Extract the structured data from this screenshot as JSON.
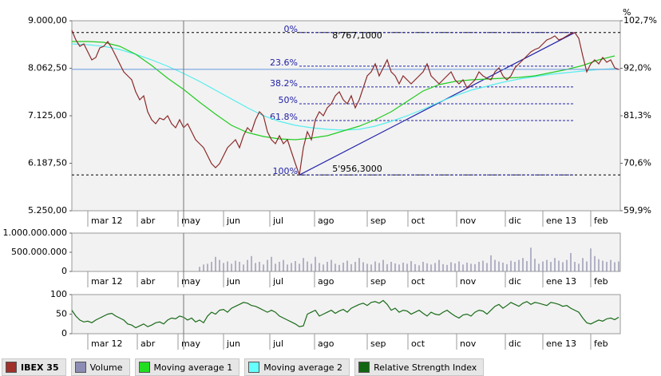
{
  "chart_data": [
    {
      "type": "line",
      "xlim": [
        0,
        137.4
      ],
      "xticks": [
        {
          "value": 4,
          "label": "mar 12"
        },
        {
          "value": 16.4,
          "label": "abr"
        },
        {
          "value": 26.6,
          "label": "may"
        },
        {
          "value": 38,
          "label": "jun"
        },
        {
          "value": 49.6,
          "label": "jul"
        },
        {
          "value": 60.8,
          "label": "ago"
        },
        {
          "value": 74,
          "label": "sep"
        },
        {
          "value": 84.2,
          "label": "oct"
        },
        {
          "value": 96.4,
          "label": "nov"
        },
        {
          "value": 108.6,
          "label": "dic"
        },
        {
          "value": 118,
          "label": "ene 13"
        },
        {
          "value": 130,
          "label": "feb"
        }
      ],
      "ylim": [
        5250,
        9000
      ],
      "yticks": [
        {
          "value": 5250,
          "label": "5.250,00"
        },
        {
          "value": 6187.5,
          "label": "6.187,50"
        },
        {
          "value": 7125,
          "label": "7.125,00"
        },
        {
          "value": 8062.5,
          "label": "8.062,50"
        },
        {
          "value": 9000,
          "label": "9.000,00"
        }
      ],
      "y2label": "%",
      "y2lim": [
        59.9,
        102.7
      ],
      "y2ticks": [
        {
          "value": 59.9,
          "label": "59,9%"
        },
        {
          "value": 70.6,
          "label": "70,6%"
        },
        {
          "value": 81.3,
          "label": "81,3%"
        },
        {
          "value": 92,
          "label": "92,0%"
        },
        {
          "value": 102.7,
          "label": "102,7%"
        }
      ],
      "series": [
        {
          "name": "IBEX 35",
          "color": "#8b2a2a",
          "values": [
            8811,
            8622,
            8496,
            8543,
            8386,
            8228,
            8275,
            8464,
            8496,
            8590,
            8464,
            8307,
            8149,
            7992,
            7913,
            7834,
            7598,
            7440,
            7519,
            7204,
            7046,
            6967,
            7078,
            7046,
            7125,
            6967,
            6889,
            7046,
            6889,
            6967,
            6810,
            6652,
            6574,
            6495,
            6337,
            6180,
            6101,
            6180,
            6337,
            6495,
            6574,
            6652,
            6495,
            6731,
            6889,
            6810,
            7046,
            7204,
            7125,
            6810,
            6652,
            6574,
            6731,
            6574,
            6652,
            6416,
            6180,
            5956.3,
            6495,
            6810,
            6652,
            7046,
            7204,
            7125,
            7283,
            7361,
            7519,
            7598,
            7440,
            7361,
            7519,
            7283,
            7440,
            7677,
            7913,
            7992,
            8149,
            7913,
            8070,
            8228,
            7992,
            7913,
            7755,
            7913,
            7834,
            7755,
            7834,
            7913,
            7992,
            8149,
            7913,
            7834,
            7755,
            7834,
            7913,
            7992,
            7834,
            7755,
            7834,
            7677,
            7755,
            7834,
            7992,
            7913,
            7866,
            7834,
            7992,
            8070,
            7913,
            7834,
            7913,
            8070,
            8149,
            8228,
            8307,
            8386,
            8433,
            8464,
            8543,
            8622,
            8653,
            8700,
            8622,
            8653,
            8700,
            8748,
            8767.1,
            8653,
            8307,
            7992,
            8149,
            8228,
            8149,
            8275,
            8181,
            8228,
            8070,
            8040
          ]
        },
        {
          "name": "Moving average 1",
          "color": "#22cc22",
          "x": [
            0,
            4,
            8,
            12,
            16,
            20,
            24,
            28,
            32,
            36,
            40,
            44,
            48,
            52,
            56,
            60,
            64,
            68,
            72,
            76,
            80,
            84,
            88,
            92,
            96,
            100,
            104,
            108,
            112,
            116,
            120,
            124,
            128,
            132,
            136
          ],
          "values": [
            8590,
            8590,
            8575,
            8496,
            8339,
            8117,
            7866,
            7645,
            7393,
            7157,
            6936,
            6794,
            6715,
            6668,
            6652,
            6684,
            6731,
            6826,
            6920,
            7046,
            7204,
            7409,
            7613,
            7739,
            7803,
            7834,
            7850,
            7866,
            7881,
            7913,
            7976,
            8039,
            8117,
            8228,
            8307
          ]
        },
        {
          "name": "Moving average 2",
          "color": "#55eeee",
          "x": [
            0,
            4,
            8,
            12,
            16,
            20,
            24,
            28,
            32,
            36,
            40,
            44,
            48,
            52,
            56,
            60,
            64,
            68,
            72,
            76,
            80,
            84,
            88,
            92,
            96,
            100,
            104,
            108,
            112,
            116,
            120,
            124,
            128,
            132,
            136
          ],
          "values": [
            8543,
            8527,
            8496,
            8433,
            8339,
            8228,
            8102,
            7960,
            7803,
            7629,
            7456,
            7283,
            7125,
            7015,
            6936,
            6889,
            6857,
            6841,
            6857,
            6920,
            7015,
            7125,
            7251,
            7393,
            7519,
            7629,
            7708,
            7787,
            7850,
            7897,
            7944,
            7976,
            8007,
            8039,
            8055
          ]
        }
      ],
      "fibonacci": {
        "x": [
          57,
          126
        ],
        "color": "#2222aa",
        "levels": [
          {
            "label": "0%",
            "value": 8767.1
          },
          {
            "label": "23.6%",
            "value": 8103.8
          },
          {
            "label": "38.2%",
            "value": 7693.4
          },
          {
            "label": "50%",
            "value": 7361.7
          },
          {
            "label": "61.8%",
            "value": 7030
          },
          {
            "label": "100%",
            "value": 5956.3
          }
        ],
        "high_label": "8'767,1000",
        "low_label": "5'956,3000"
      }
    },
    {
      "type": "bar",
      "xlim": [
        0,
        137.4
      ],
      "xticks": [
        {
          "value": 4,
          "label": "mar 12"
        },
        {
          "value": 16.4,
          "label": "abr"
        },
        {
          "value": 26.6,
          "label": "may"
        },
        {
          "value": 38,
          "label": "jun"
        },
        {
          "value": 49.6,
          "label": "jul"
        },
        {
          "value": 60.8,
          "label": "ago"
        },
        {
          "value": 74,
          "label": "sep"
        },
        {
          "value": 84.2,
          "label": "oct"
        },
        {
          "value": 96.4,
          "label": "nov"
        },
        {
          "value": 108.6,
          "label": "dic"
        },
        {
          "value": 118,
          "label": "ene 13"
        },
        {
          "value": 130,
          "label": "feb"
        }
      ],
      "ylim": [
        0,
        1000000000
      ],
      "yticks": [
        0,
        {
          "value": 500000000,
          "label": "500.000.000"
        },
        {
          "value": 1000000000,
          "label": "1.000.000.000"
        }
      ],
      "series": [
        {
          "name": "Volume",
          "color": "#8888aa",
          "values": [
            null,
            null,
            null,
            null,
            null,
            null,
            null,
            null,
            null,
            null,
            null,
            null,
            null,
            null,
            null,
            null,
            null,
            null,
            null,
            null,
            null,
            null,
            null,
            null,
            null,
            null,
            null,
            null,
            null,
            null,
            null,
            null,
            120000000,
            180000000,
            200000000,
            250000000,
            380000000,
            300000000,
            220000000,
            260000000,
            200000000,
            280000000,
            250000000,
            180000000,
            300000000,
            400000000,
            220000000,
            250000000,
            180000000,
            300000000,
            380000000,
            200000000,
            250000000,
            300000000,
            180000000,
            220000000,
            270000000,
            200000000,
            350000000,
            260000000,
            200000000,
            380000000,
            220000000,
            180000000,
            250000000,
            300000000,
            200000000,
            170000000,
            230000000,
            280000000,
            190000000,
            250000000,
            350000000,
            240000000,
            200000000,
            180000000,
            260000000,
            220000000,
            300000000,
            190000000,
            250000000,
            210000000,
            180000000,
            230000000,
            200000000,
            270000000,
            190000000,
            160000000,
            250000000,
            210000000,
            180000000,
            220000000,
            300000000,
            190000000,
            170000000,
            240000000,
            210000000,
            260000000,
            180000000,
            230000000,
            200000000,
            190000000,
            250000000,
            280000000,
            220000000,
            420000000,
            300000000,
            260000000,
            230000000,
            190000000,
            280000000,
            250000000,
            300000000,
            350000000,
            270000000,
            620000000,
            330000000,
            200000000,
            260000000,
            300000000,
            250000000,
            350000000,
            280000000,
            240000000,
            300000000,
            480000000,
            250000000,
            200000000,
            350000000,
            260000000,
            600000000,
            400000000,
            320000000,
            280000000,
            250000000,
            300000000,
            240000000,
            260000000
          ]
        }
      ]
    },
    {
      "type": "line",
      "xlim": [
        0,
        137.4
      ],
      "xticks": [
        {
          "value": 4,
          "label": "mar 12"
        },
        {
          "value": 16.4,
          "label": "abr"
        },
        {
          "value": 26.6,
          "label": "may"
        },
        {
          "value": 38,
          "label": "jun"
        },
        {
          "value": 49.6,
          "label": "jul"
        },
        {
          "value": 60.8,
          "label": "ago"
        },
        {
          "value": 74,
          "label": "sep"
        },
        {
          "value": 84.2,
          "label": "oct"
        },
        {
          "value": 96.4,
          "label": "nov"
        },
        {
          "value": 108.6,
          "label": "dic"
        },
        {
          "value": 118,
          "label": "ene 13"
        },
        {
          "value": 130,
          "label": "feb"
        }
      ],
      "ylim": [
        0,
        100
      ],
      "yticks": [
        0,
        50,
        100
      ],
      "series": [
        {
          "name": "Relative Strength Index",
          "color": "#1a6b1a",
          "values": [
            60,
            45,
            35,
            30,
            32,
            28,
            35,
            40,
            45,
            50,
            52,
            45,
            40,
            35,
            25,
            22,
            15,
            20,
            25,
            18,
            22,
            28,
            30,
            25,
            35,
            40,
            38,
            45,
            42,
            35,
            40,
            30,
            35,
            28,
            45,
            55,
            50,
            60,
            62,
            55,
            65,
            70,
            75,
            80,
            78,
            72,
            70,
            65,
            60,
            55,
            60,
            55,
            45,
            40,
            35,
            30,
            25,
            18,
            20,
            50,
            55,
            60,
            45,
            50,
            55,
            60,
            52,
            58,
            62,
            55,
            65,
            70,
            75,
            78,
            72,
            80,
            82,
            78,
            85,
            75,
            60,
            65,
            55,
            60,
            58,
            50,
            55,
            60,
            52,
            45,
            55,
            50,
            48,
            55,
            60,
            52,
            45,
            40,
            48,
            50,
            45,
            55,
            60,
            58,
            50,
            60,
            70,
            75,
            65,
            72,
            80,
            75,
            70,
            78,
            82,
            75,
            80,
            78,
            75,
            72,
            80,
            78,
            75,
            70,
            72,
            65,
            60,
            55,
            40,
            28,
            25,
            30,
            35,
            32,
            38,
            40,
            36,
            42
          ]
        }
      ]
    }
  ]
}
